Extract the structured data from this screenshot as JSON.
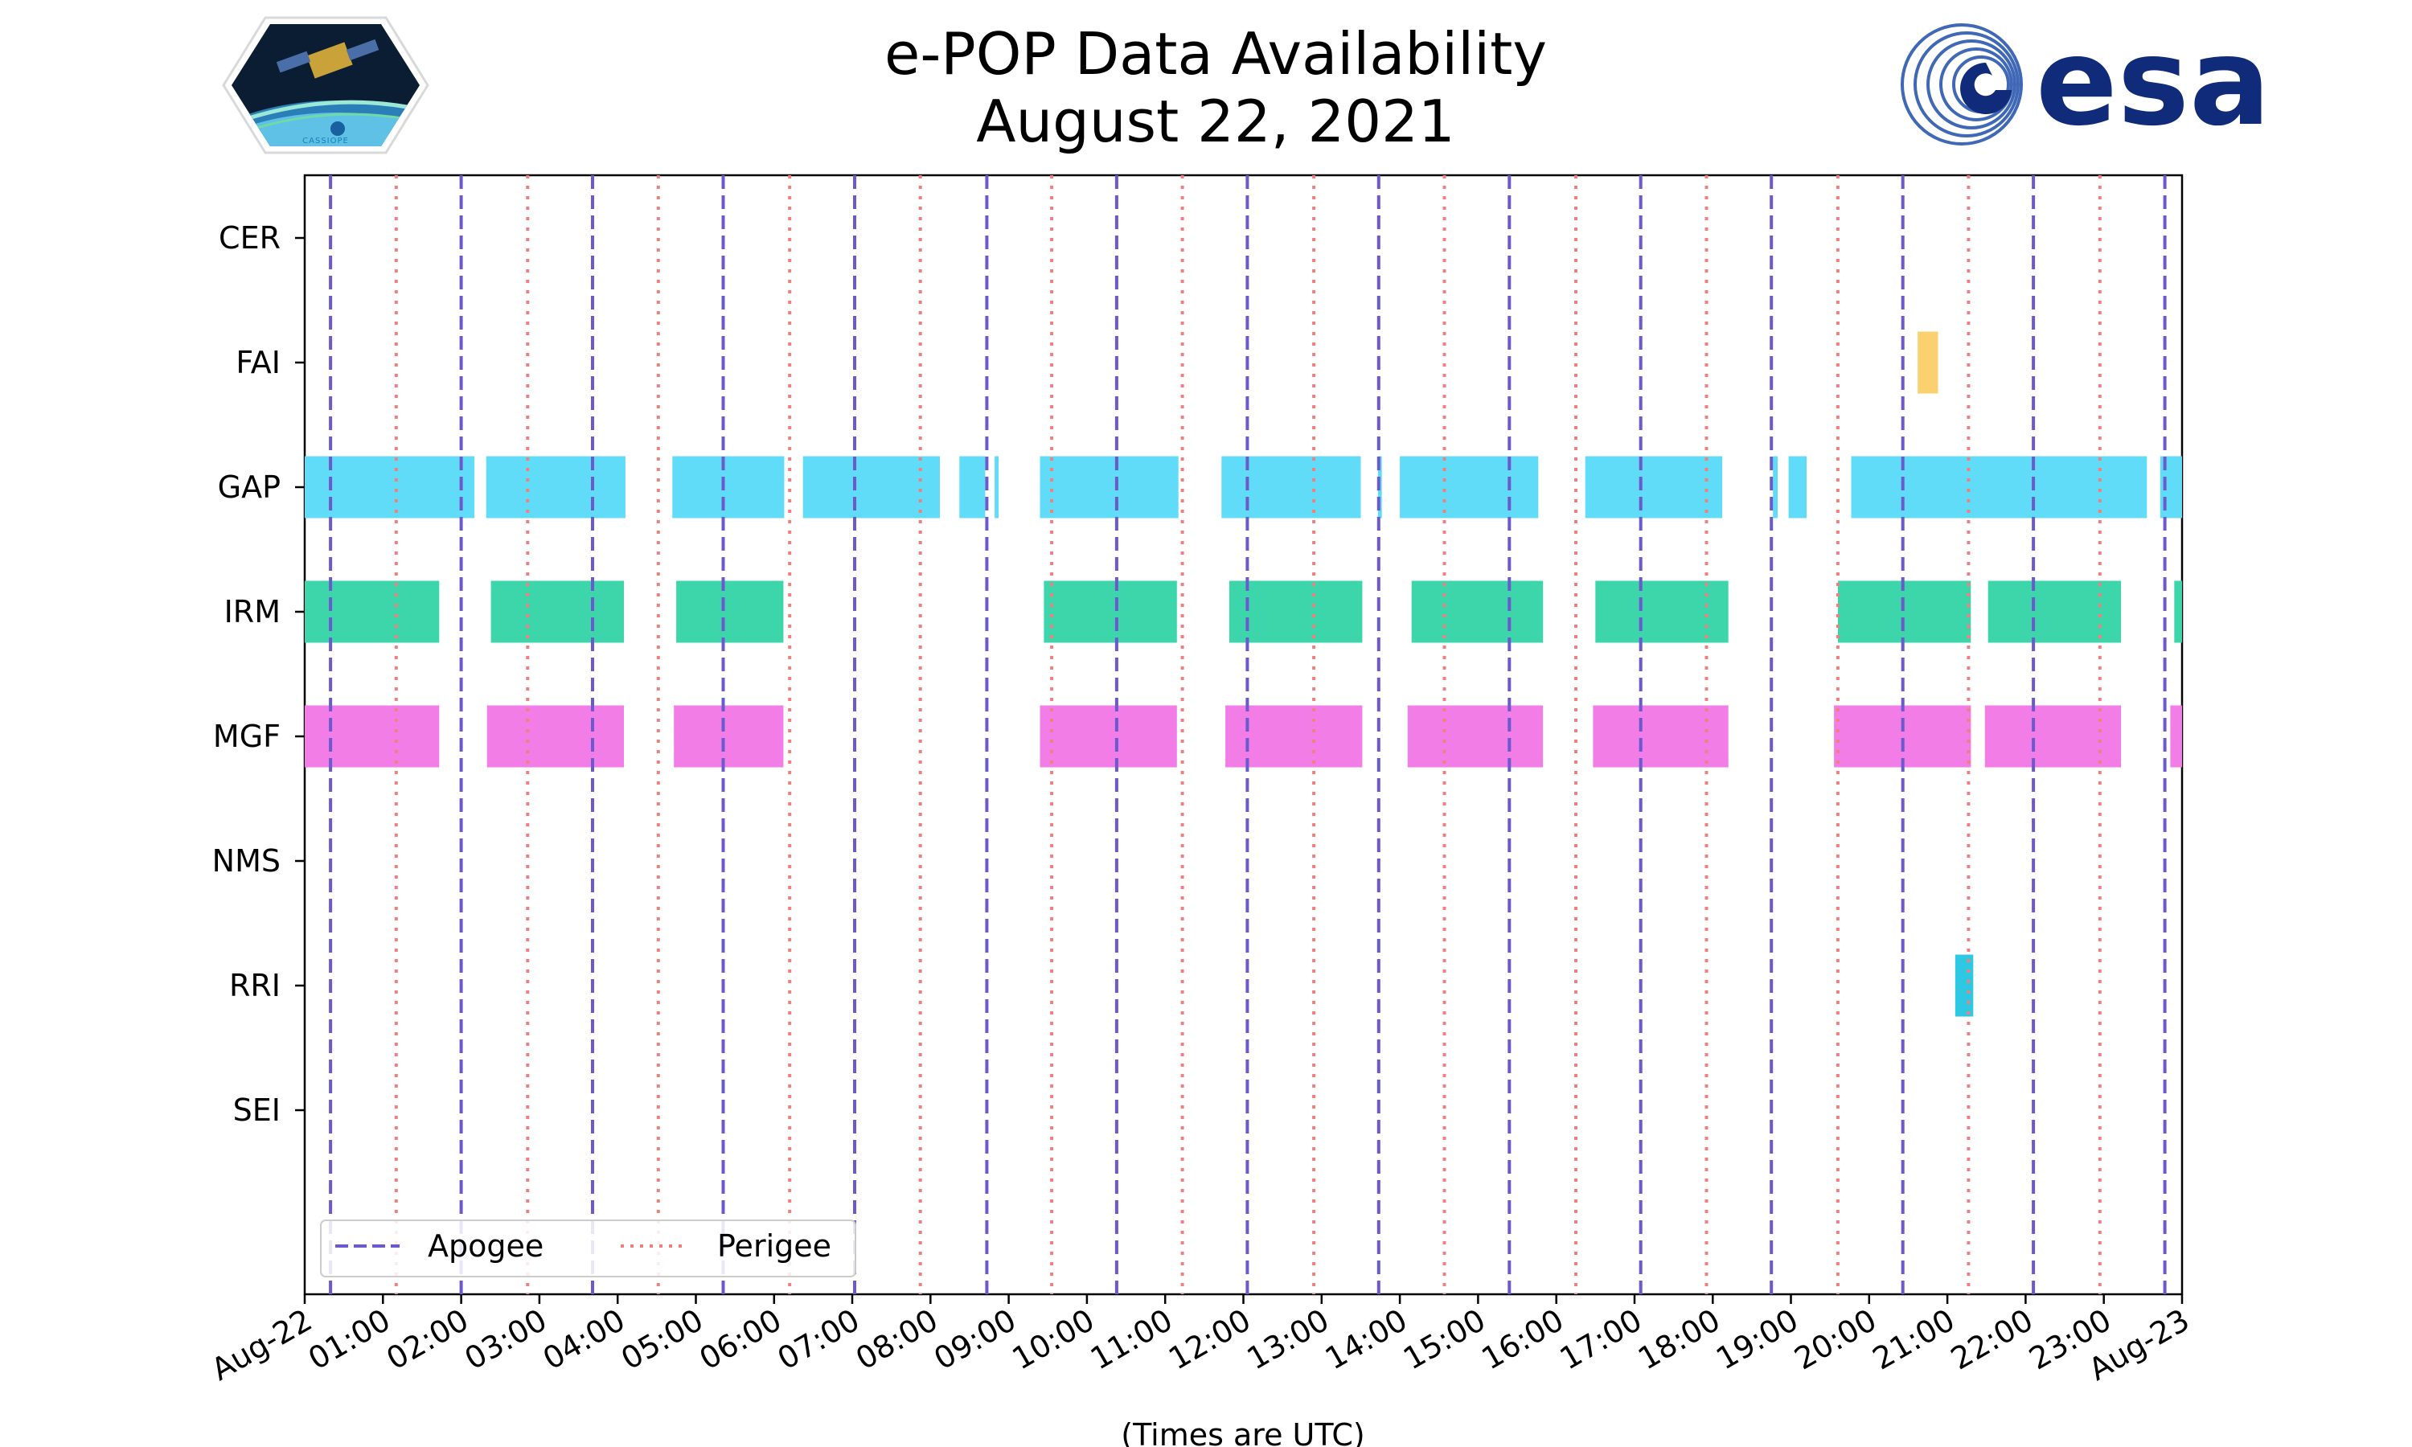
{
  "chart_data": {
    "type": "timeline",
    "title_lines": [
      "e-POP Data Availability",
      "August 22, 2021"
    ],
    "xlabel": "(Times are UTC)",
    "x_range_hours": [
      0,
      24
    ],
    "x_ticks": [
      {
        "hour": 0,
        "label": "Aug-22"
      },
      {
        "hour": 1,
        "label": "01:00"
      },
      {
        "hour": 2,
        "label": "02:00"
      },
      {
        "hour": 3,
        "label": "03:00"
      },
      {
        "hour": 4,
        "label": "04:00"
      },
      {
        "hour": 5,
        "label": "05:00"
      },
      {
        "hour": 6,
        "label": "06:00"
      },
      {
        "hour": 7,
        "label": "07:00"
      },
      {
        "hour": 8,
        "label": "08:00"
      },
      {
        "hour": 9,
        "label": "09:00"
      },
      {
        "hour": 10,
        "label": "10:00"
      },
      {
        "hour": 11,
        "label": "11:00"
      },
      {
        "hour": 12,
        "label": "12:00"
      },
      {
        "hour": 13,
        "label": "13:00"
      },
      {
        "hour": 14,
        "label": "14:00"
      },
      {
        "hour": 15,
        "label": "15:00"
      },
      {
        "hour": 16,
        "label": "16:00"
      },
      {
        "hour": 17,
        "label": "17:00"
      },
      {
        "hour": 18,
        "label": "18:00"
      },
      {
        "hour": 19,
        "label": "19:00"
      },
      {
        "hour": 20,
        "label": "20:00"
      },
      {
        "hour": 21,
        "label": "21:00"
      },
      {
        "hour": 22,
        "label": "22:00"
      },
      {
        "hour": 23,
        "label": "23:00"
      },
      {
        "hour": 24,
        "label": "Aug-23"
      }
    ],
    "instruments": [
      {
        "name": "CER",
        "color": "#f4a6c6",
        "intervals": []
      },
      {
        "name": "FAI",
        "color": "#fbd06e",
        "intervals": [
          [
            20.62,
            20.88
          ]
        ]
      },
      {
        "name": "GAP",
        "color": "#61dcf8",
        "intervals": [
          [
            0.0,
            2.17
          ],
          [
            2.32,
            4.1
          ],
          [
            4.7,
            6.13
          ],
          [
            6.37,
            8.12
          ],
          [
            8.37,
            8.7
          ],
          [
            8.82,
            8.87
          ],
          [
            9.4,
            11.17
          ],
          [
            11.72,
            13.5
          ],
          [
            13.72,
            13.77
          ],
          [
            14.0,
            15.77
          ],
          [
            16.37,
            18.12
          ],
          [
            18.77,
            18.83
          ],
          [
            18.97,
            19.2
          ],
          [
            19.77,
            23.55
          ],
          [
            23.72,
            24.0
          ]
        ]
      },
      {
        "name": "IRM",
        "color": "#3dd6ab",
        "intervals": [
          [
            0.0,
            1.72
          ],
          [
            2.38,
            4.08
          ],
          [
            4.75,
            6.12
          ],
          [
            9.45,
            11.15
          ],
          [
            11.82,
            13.52
          ],
          [
            14.15,
            15.83
          ],
          [
            16.5,
            18.2
          ],
          [
            19.6,
            21.3
          ],
          [
            21.52,
            23.22
          ],
          [
            23.9,
            24.0
          ]
        ]
      },
      {
        "name": "MGF",
        "color": "#f27de6",
        "intervals": [
          [
            0.0,
            1.72
          ],
          [
            2.33,
            4.08
          ],
          [
            4.72,
            6.12
          ],
          [
            9.4,
            11.15
          ],
          [
            11.77,
            13.52
          ],
          [
            14.1,
            15.83
          ],
          [
            16.47,
            18.2
          ],
          [
            19.55,
            21.3
          ],
          [
            21.48,
            23.22
          ],
          [
            23.85,
            24.0
          ]
        ]
      },
      {
        "name": "NMS",
        "color": "#b19cd9",
        "intervals": []
      },
      {
        "name": "RRI",
        "color": "#2ec8e2",
        "intervals": [
          [
            21.1,
            21.33
          ]
        ]
      },
      {
        "name": "SEI",
        "color": "#9ad0ec",
        "intervals": []
      }
    ],
    "apogee_hours": [
      0.33,
      2.0,
      3.68,
      5.35,
      7.03,
      8.72,
      10.38,
      12.05,
      13.73,
      15.4,
      17.08,
      18.75,
      20.43,
      22.1,
      23.78
    ],
    "perigee_hours": [
      1.17,
      2.85,
      4.52,
      6.2,
      7.87,
      9.55,
      11.22,
      12.9,
      14.57,
      16.25,
      17.92,
      19.6,
      21.27,
      22.95
    ],
    "legend": {
      "position": "lower-left",
      "items": [
        {
          "label": "Apogee",
          "style": "dashed",
          "color": "#6a5acd"
        },
        {
          "label": "Perigee",
          "style": "dotted",
          "color": "#f08080"
        }
      ]
    }
  },
  "logos": {
    "left": {
      "text": "CASSIOPE"
    },
    "right": {
      "text": "esa",
      "color": "#0f2b7a"
    }
  }
}
